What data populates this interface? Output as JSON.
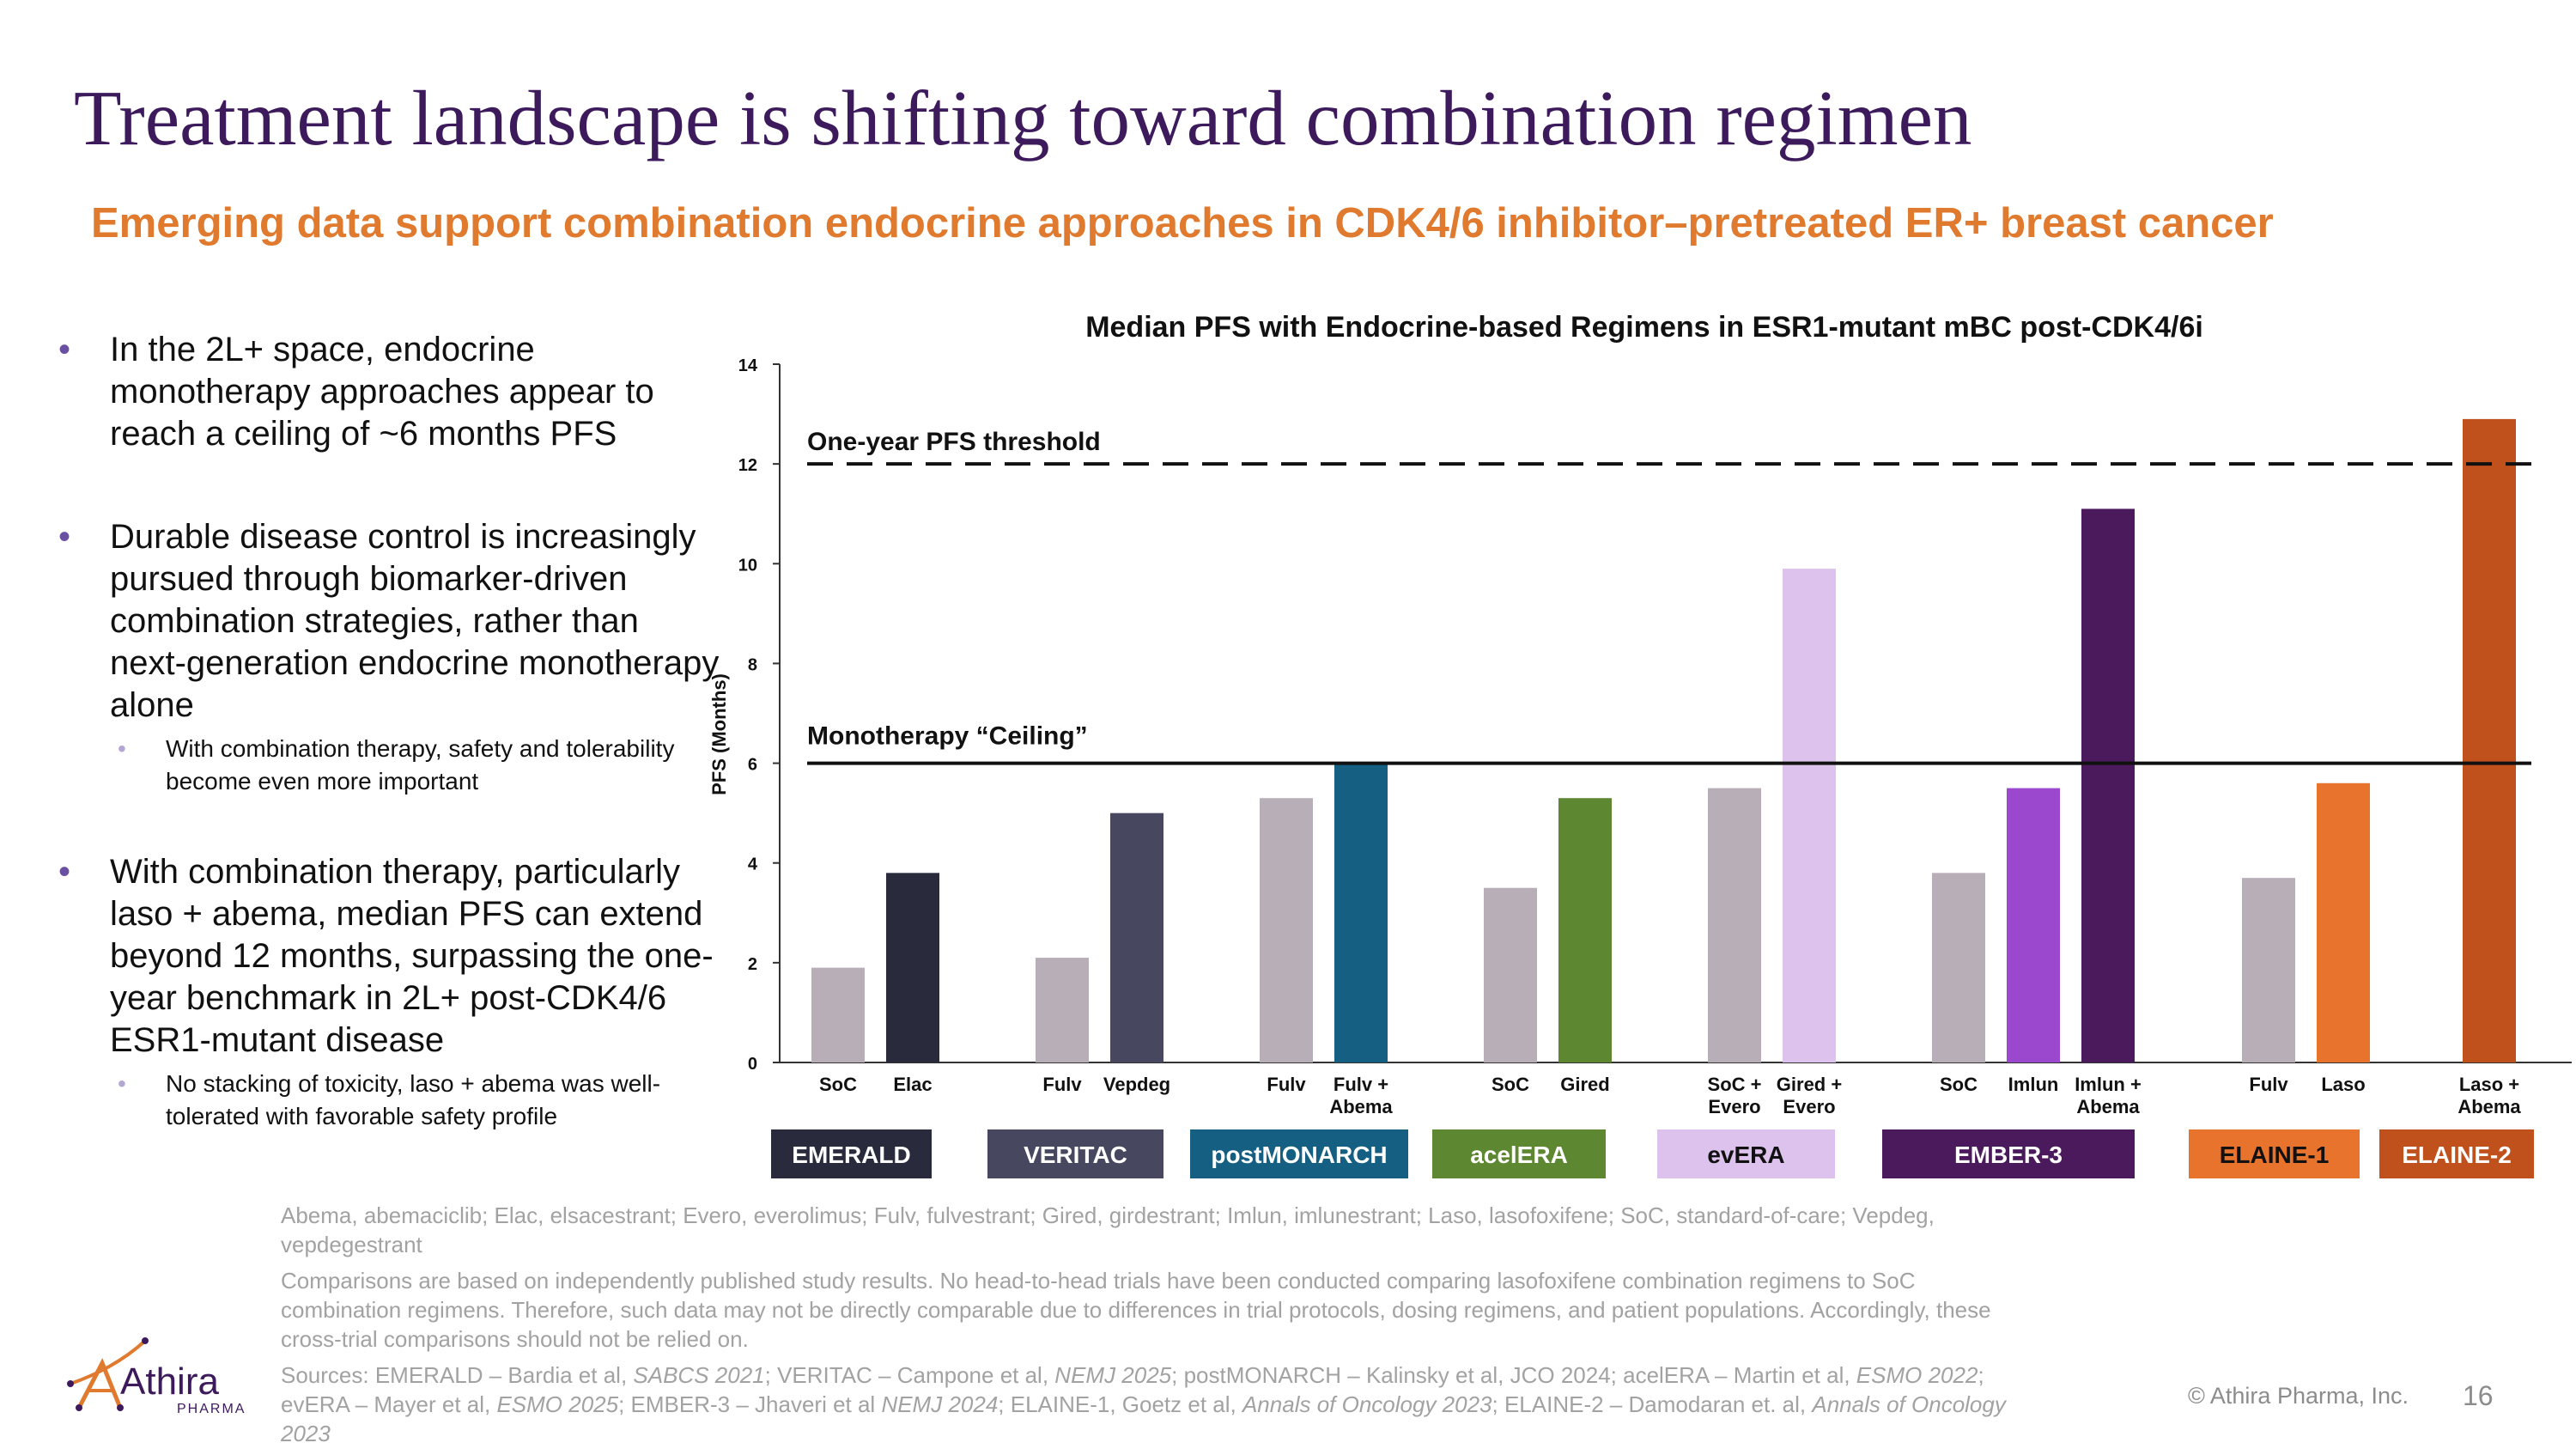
{
  "slide": {
    "title": "Treatment landscape is shifting toward combination regimen",
    "subtitle": "Emerging data support combination endocrine approaches in CDK4/6 inhibitor–pretreated ER+ breast cancer",
    "bullets": [
      "In the 2L+ space, endocrine monotherapy approaches appear to reach a ceiling of ~6 months PFS",
      "Durable disease control is increasingly pursued through biomarker-driven combination strategies, rather than next-generation endocrine monotherapy alone",
      "With combination therapy, particularly laso + abema, median PFS can extend beyond 12 months, surpassing the one-year benchmark in 2L+ post-CDK4/6 ESR1-mutant disease"
    ],
    "subbullets": [
      "With combination therapy, safety and tolerability become even more important",
      "No stacking of toxicity, laso + abema was well-tolerated with favorable safety profile"
    ],
    "footnote_abbrev": "Abema, abemaciclib; Elac, elsacestrant; Evero, everolimus; Fulv, fulvestrant; Gired, girdestrant; Imlun, imlunestrant; Laso, lasofoxifene; SoC, standard-of-care; Vepdeg, vepdegestrant",
    "footnote_disclaimer": "Comparisons are based on independently published study results. No head-to-head trials have been conducted comparing lasofoxifene combination regimens to SoC combination regimens. Therefore, such data may not be directly comparable due to differences in trial protocols, dosing regimens, and patient populations. Accordingly, these cross-trial comparisons should not be relied on.",
    "sources": {
      "s1": "Sources: EMERALD – Bardia et al, ",
      "i1": "SABCS 2021",
      "s2": "; VERITAC – Campone et al, ",
      "i2": "NEMJ 2025",
      "s3": "; postMONARCH – Kalinsky et al, JCO 2024; acelERA – Martin et al, ",
      "i3": "ESMO 2022",
      "s4": "; evERA – Mayer et al, ",
      "i4": "ESMO 2025",
      "s5": "; EMBER-3 – Jhaveri et al ",
      "i5": "NEMJ 2024",
      "s6": "; ELAINE-1, Goetz et al, ",
      "i6": "Annals of Oncology 2023",
      "s7": "; ELAINE-2 – Damodaran et. al, ",
      "i7": "Annals of Oncology 2023"
    },
    "copyright": "© Athira Pharma, Inc.",
    "page_number": "16",
    "logo_text": "Athira",
    "logo_subtext": "PHARMA"
  },
  "chart_data": {
    "type": "bar",
    "title": "Median PFS with Endocrine-based Regimens in ESR1-mutant mBC post-CDK4/6i",
    "ylabel": "PFS (Months)",
    "ylim": [
      0,
      14
    ],
    "yticks": [
      0,
      2,
      4,
      6,
      8,
      10,
      12,
      14
    ],
    "reference_lines": [
      {
        "label": "One-year PFS threshold",
        "value": 12,
        "style": "dashed"
      },
      {
        "label": "Monotherapy “Ceiling”",
        "value": 6,
        "style": "solid"
      }
    ],
    "studies": [
      {
        "name": "EMERALD",
        "color": "#2a2a3d",
        "text_color": "#ffffff",
        "bars": [
          {
            "label": [
              "SoC"
            ],
            "value": 1.9,
            "color": "#b8aeb8"
          },
          {
            "label": [
              "Elac"
            ],
            "value": 3.8,
            "color": "#2a2a3d"
          }
        ]
      },
      {
        "name": "VERITAC",
        "color": "#474760",
        "text_color": "#ffffff",
        "bars": [
          {
            "label": [
              "Fulv"
            ],
            "value": 2.1,
            "color": "#b8aeb8"
          },
          {
            "label": [
              "Vepdeg"
            ],
            "value": 5.0,
            "color": "#474760"
          }
        ]
      },
      {
        "name": "postMONARCH",
        "color": "#155f82",
        "text_color": "#ffffff",
        "bars": [
          {
            "label": [
              "Fulv"
            ],
            "value": 5.3,
            "color": "#b8aeb8"
          },
          {
            "label": [
              "Fulv +",
              "Abema"
            ],
            "value": 6.0,
            "color": "#155f82"
          }
        ]
      },
      {
        "name": "acelERA",
        "color": "#5e8731",
        "text_color": "#ffffff",
        "bars": [
          {
            "label": [
              "SoC"
            ],
            "value": 3.5,
            "color": "#b8aeb8"
          },
          {
            "label": [
              "Gired"
            ],
            "value": 5.3,
            "color": "#5e8731"
          }
        ]
      },
      {
        "name": "evERA",
        "color": "#dcc2ec",
        "text_color": "#111111",
        "bars": [
          {
            "label": [
              "SoC +",
              "Evero"
            ],
            "value": 5.5,
            "color": "#b8aeb8"
          },
          {
            "label": [
              "Gired +",
              "Evero"
            ],
            "value": 9.9,
            "color": "#dcc2ec"
          }
        ]
      },
      {
        "name": "EMBER-3",
        "color": "#4a1a5c",
        "text_color": "#ffffff",
        "bars": [
          {
            "label": [
              "SoC"
            ],
            "value": 3.8,
            "color": "#b8aeb8"
          },
          {
            "label": [
              "Imlun"
            ],
            "value": 5.5,
            "color": "#9b48cf"
          },
          {
            "label": [
              "Imlun +",
              "Abema"
            ],
            "value": 11.1,
            "color": "#4a1a5c"
          }
        ]
      },
      {
        "name": "ELAINE-1",
        "color": "#e8732c",
        "text_color": "#111111",
        "bars": [
          {
            "label": [
              "Fulv"
            ],
            "value": 3.7,
            "color": "#b8aeb8"
          },
          {
            "label": [
              "Laso"
            ],
            "value": 5.6,
            "color": "#e8732c"
          }
        ]
      },
      {
        "name": "ELAINE-2",
        "color": "#c0501c",
        "text_color": "#ffffff",
        "bars": [
          {
            "label": [
              "Laso +",
              "Abema"
            ],
            "value": 12.9,
            "color": "#c0501c"
          }
        ]
      }
    ]
  }
}
